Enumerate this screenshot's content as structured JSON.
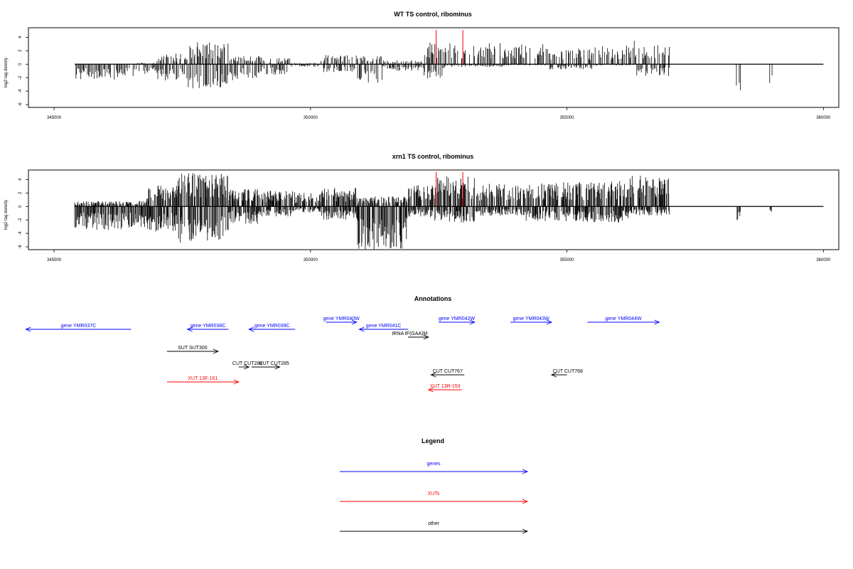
{
  "chart_data": [
    {
      "type": "bar",
      "title": "WT TS control, ribominus",
      "ylabel": "log2 tag density",
      "xlim": [
        344500,
        360300
      ],
      "ylim": [
        -6,
        5
      ],
      "xticks": [
        "345000",
        "350000",
        "355000",
        "360000"
      ],
      "yticks": [
        "4",
        "2",
        "0",
        "-2",
        "-4",
        "-6"
      ],
      "colors": {
        "bars": "#000000",
        "markers": "#ff0000"
      },
      "markers_x": [
        352450,
        352970
      ],
      "signal_profile": [
        {
          "start": 345400,
          "end": 346600,
          "pos": 0.0,
          "neg": 2.3
        },
        {
          "start": 346600,
          "end": 347000,
          "pos": 0.2,
          "neg": 1.5
        },
        {
          "start": 347000,
          "end": 347600,
          "pos": 1.6,
          "neg": 2.5
        },
        {
          "start": 347600,
          "end": 348400,
          "pos": 3.3,
          "neg": 3.6
        },
        {
          "start": 348400,
          "end": 349000,
          "pos": 1.2,
          "neg": 2.4
        },
        {
          "start": 349000,
          "end": 349600,
          "pos": 1.0,
          "neg": 1.6
        },
        {
          "start": 349600,
          "end": 350200,
          "pos": 0.2,
          "neg": 0.4
        },
        {
          "start": 350200,
          "end": 350900,
          "pos": 1.4,
          "neg": 1.2
        },
        {
          "start": 350900,
          "end": 351400,
          "pos": 1.2,
          "neg": 3.0
        },
        {
          "start": 351400,
          "end": 352200,
          "pos": 0.6,
          "neg": 1.0
        },
        {
          "start": 352200,
          "end": 352600,
          "pos": 3.2,
          "neg": 2.2
        },
        {
          "start": 352600,
          "end": 353800,
          "pos": 3.3,
          "neg": 0.4
        },
        {
          "start": 353800,
          "end": 354600,
          "pos": 3.0,
          "neg": 0.2
        },
        {
          "start": 354600,
          "end": 355500,
          "pos": 2.4,
          "neg": 0.8
        },
        {
          "start": 355500,
          "end": 356300,
          "pos": 3.0,
          "neg": 0.2
        },
        {
          "start": 356300,
          "end": 357000,
          "pos": 3.5,
          "neg": 1.8
        },
        {
          "start": 357000,
          "end": 358300,
          "pos": 0.0,
          "neg": 0.0
        },
        {
          "start": 358300,
          "end": 358400,
          "pos": 0.0,
          "neg": 4.5
        },
        {
          "start": 358400,
          "end": 358950,
          "pos": 0.0,
          "neg": 0.0
        },
        {
          "start": 358950,
          "end": 359000,
          "pos": 0.0,
          "neg": 3.5
        }
      ]
    },
    {
      "type": "bar",
      "title": "xrn1 TS control, ribominus",
      "ylabel": "log2 tag density",
      "xlim": [
        344500,
        360300
      ],
      "ylim": [
        -6,
        5
      ],
      "xticks": [
        "345000",
        "350000",
        "355000",
        "360000"
      ],
      "yticks": [
        "4",
        "2",
        "0",
        "-2",
        "-4",
        "-6"
      ],
      "colors": {
        "bars": "#000000",
        "markers": "#ff0000"
      },
      "markers_x": [
        352450,
        352970
      ],
      "signal_profile": [
        {
          "start": 345400,
          "end": 346800,
          "pos": 0.8,
          "neg": 3.5
        },
        {
          "start": 346800,
          "end": 347400,
          "pos": 3.2,
          "neg": 3.8
        },
        {
          "start": 347400,
          "end": 348400,
          "pos": 5.0,
          "neg": 5.4
        },
        {
          "start": 348400,
          "end": 349000,
          "pos": 2.6,
          "neg": 2.6
        },
        {
          "start": 349000,
          "end": 349700,
          "pos": 2.4,
          "neg": 1.5
        },
        {
          "start": 349700,
          "end": 350200,
          "pos": 2.0,
          "neg": 1.0
        },
        {
          "start": 350200,
          "end": 350900,
          "pos": 2.8,
          "neg": 2.0
        },
        {
          "start": 350900,
          "end": 351900,
          "pos": 1.6,
          "neg": 6.5
        },
        {
          "start": 351900,
          "end": 352400,
          "pos": 3.5,
          "neg": 1.6
        },
        {
          "start": 352400,
          "end": 353200,
          "pos": 4.5,
          "neg": 2.4
        },
        {
          "start": 353200,
          "end": 354200,
          "pos": 3.4,
          "neg": 1.4
        },
        {
          "start": 354200,
          "end": 355200,
          "pos": 3.6,
          "neg": 2.2
        },
        {
          "start": 355200,
          "end": 356200,
          "pos": 3.8,
          "neg": 2.4
        },
        {
          "start": 356200,
          "end": 357000,
          "pos": 4.6,
          "neg": 1.4
        },
        {
          "start": 357000,
          "end": 358300,
          "pos": 0.0,
          "neg": 0.0
        },
        {
          "start": 358300,
          "end": 358400,
          "pos": 0.0,
          "neg": 2.6
        },
        {
          "start": 358400,
          "end": 358950,
          "pos": 0.0,
          "neg": 0.0
        },
        {
          "start": 358950,
          "end": 359000,
          "pos": 0.0,
          "neg": 0.8
        }
      ]
    },
    {
      "type": "annotation-track",
      "title": "Annotations",
      "features": [
        {
          "label": "gene YMR037C",
          "class": "gene",
          "strand": "-",
          "start": 344450,
          "end": 346500
        },
        {
          "label": "gene YMR038C",
          "class": "gene",
          "strand": "-",
          "start": 347600,
          "end": 348400
        },
        {
          "label": "gene YMR039C",
          "class": "gene",
          "strand": "-",
          "start": 348800,
          "end": 349700
        },
        {
          "label": "gene YMR040W",
          "class": "gene",
          "strand": "+",
          "start": 350300,
          "end": 350900
        },
        {
          "label": "gene YMR041C",
          "class": "gene",
          "strand": "-",
          "start": 350950,
          "end": 351900
        },
        {
          "label": "gene YMR042W",
          "class": "gene",
          "strand": "+",
          "start": 352500,
          "end": 353200
        },
        {
          "label": "gene YMR043W",
          "class": "gene",
          "strand": "+",
          "start": 353900,
          "end": 354700
        },
        {
          "label": "gene YMR044W",
          "class": "gene",
          "strand": "+",
          "start": 355400,
          "end": 356800
        },
        {
          "label": "tRNA tF(GAA)M",
          "class": "other",
          "strand": "+",
          "start": 351900,
          "end": 352300
        },
        {
          "label": "SUT SUT300",
          "class": "other",
          "strand": "+",
          "start": 347200,
          "end": 348200
        },
        {
          "label": "CUT CUT284",
          "class": "other",
          "strand": "+",
          "start": 348600,
          "end": 348800
        },
        {
          "label": "CUT CUT285",
          "class": "other",
          "strand": "+",
          "start": 348850,
          "end": 349400
        },
        {
          "label": "XUT 13F-161",
          "class": "xut",
          "strand": "+",
          "start": 347200,
          "end": 348600
        },
        {
          "label": "CUT CUT767",
          "class": "other",
          "strand": "-",
          "start": 352350,
          "end": 353000
        },
        {
          "label": "XUT 13R-153",
          "class": "xut",
          "strand": "-",
          "start": 352300,
          "end": 352950
        },
        {
          "label": "CUT CUT768",
          "class": "other",
          "strand": "-",
          "start": 354700,
          "end": 355000
        }
      ]
    },
    {
      "type": "legend",
      "title": "Legend",
      "entries": [
        {
          "label": "genes",
          "color": "#0000ff"
        },
        {
          "label": "XUTs",
          "color": "#ff0000"
        },
        {
          "label": "other",
          "color": "#000000"
        }
      ]
    }
  ]
}
